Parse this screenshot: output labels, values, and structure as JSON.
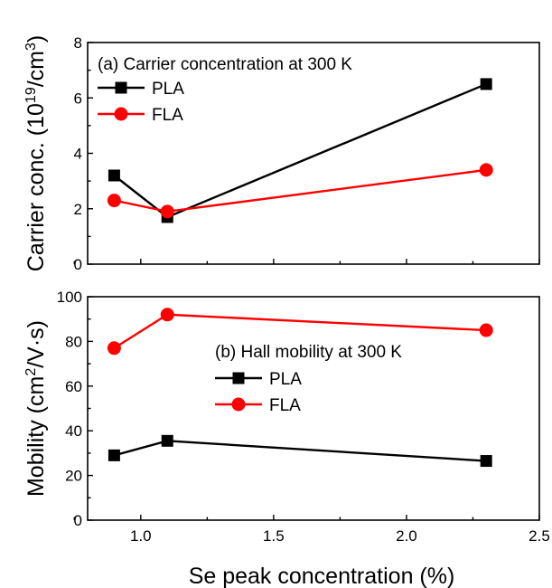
{
  "chart_data": [
    {
      "type": "line",
      "annotation": "(a) Carrier concentration at 300 K",
      "ylabel_main": "Carrier conc. (10",
      "ylabel_sup1": "19",
      "ylabel_mid": "/cm",
      "ylabel_sup2": "3",
      "ylabel_end": ")",
      "xlim": [
        0.8,
        2.5
      ],
      "ylim": [
        0,
        8
      ],
      "yticks": [
        0,
        2,
        4,
        6,
        8
      ],
      "xticks": [
        1.0,
        1.5,
        2.0,
        2.5
      ],
      "x_tick_labels_shown": false,
      "legend": "upper-left",
      "series": [
        {
          "name": "PLA",
          "marker": "square",
          "color": "#000000",
          "x": [
            0.9,
            1.1,
            2.3
          ],
          "y": [
            3.2,
            1.7,
            6.5
          ]
        },
        {
          "name": "FLA",
          "marker": "circle",
          "color": "#ff0000",
          "x": [
            0.9,
            1.1,
            2.3
          ],
          "y": [
            2.3,
            1.9,
            3.4
          ]
        }
      ]
    },
    {
      "type": "line",
      "annotation": "(b) Hall mobility at 300 K",
      "ylabel_main": "Mobility (cm",
      "ylabel_sup1": "2",
      "ylabel_mid": "/V·s)",
      "xlabel": "Se peak concentration (%)",
      "xlim": [
        0.8,
        2.5
      ],
      "ylim": [
        0,
        100
      ],
      "yticks": [
        0,
        20,
        40,
        60,
        80,
        100
      ],
      "xticks": [
        1.0,
        1.5,
        2.0,
        2.5
      ],
      "xtick_labels": [
        "1.0",
        "1.5",
        "2.0",
        "2.5"
      ],
      "legend": "center",
      "series": [
        {
          "name": "PLA",
          "marker": "square",
          "color": "#000000",
          "x": [
            0.9,
            1.1,
            2.3
          ],
          "y": [
            29,
            35.5,
            26.5
          ]
        },
        {
          "name": "FLA",
          "marker": "circle",
          "color": "#ff0000",
          "x": [
            0.9,
            1.1,
            2.3
          ],
          "y": [
            77,
            92,
            85
          ]
        }
      ]
    }
  ]
}
